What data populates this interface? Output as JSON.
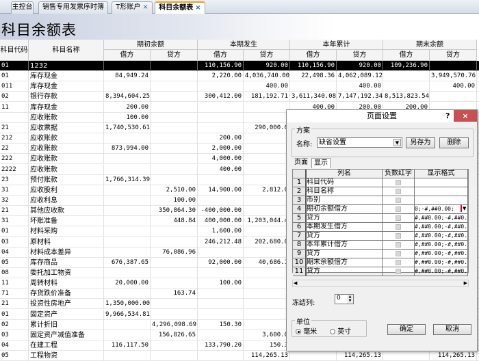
{
  "tabs": [
    {
      "label": "主控台",
      "closable": false
    },
    {
      "label": "销售专用发票序时簿",
      "closable": false
    },
    {
      "label": "T形账户",
      "closable": true
    },
    {
      "label": "科目余额表",
      "closable": true,
      "active": true
    }
  ],
  "page_title": "科目余额表",
  "header": {
    "code": "科目代码",
    "name": "科目名称",
    "groups": [
      "期初余额",
      "本期发生",
      "本年累计",
      "期末余额"
    ],
    "debit": "借方",
    "credit": "贷方"
  },
  "rows": [
    [
      "01",
      "1232",
      "",
      "",
      "110,156.90",
      "920.00",
      "110,156.90",
      "920.00",
      "109,236.90",
      ""
    ],
    [
      "01",
      "库存现金",
      "84,949.24",
      "",
      "2,220.00",
      "4,036,740.00",
      "22,498.36",
      "4,062,089.12",
      "",
      "3,949,570.76"
    ],
    [
      "011",
      "库存现金",
      "",
      "",
      "",
      "400.00",
      "",
      "400.00",
      "",
      "400.00"
    ],
    [
      "02",
      "银行存款",
      "8,394,604.25",
      "",
      "300,412.00",
      "181,192.71",
      "3,611,340.08",
      "7,147,192.34",
      "8,513,823.54",
      ""
    ],
    [
      "11",
      "库存现金",
      "200.00",
      "",
      "",
      "",
      "400.00",
      "200.00",
      "200.00",
      ""
    ],
    [
      "",
      "应收账款",
      "100.00",
      "",
      "",
      "",
      "",
      "",
      "",
      ""
    ],
    [
      "21",
      "应收票据",
      "1,740,530.61",
      "",
      "",
      "290,000.0",
      "",
      "",
      "",
      ""
    ],
    [
      "212",
      "应收账款",
      "",
      "",
      "200.00",
      "",
      "",
      "",
      "",
      ""
    ],
    [
      "22",
      "应收账款",
      "873,994.00",
      "",
      "2,000.00",
      "",
      "",
      "",
      "",
      ""
    ],
    [
      "222",
      "应收账款",
      "",
      "",
      "4,000.00",
      "",
      "",
      "",
      "",
      ""
    ],
    [
      "2222",
      "应收账款",
      "",
      "",
      "400.00",
      "",
      "",
      "",
      "",
      ""
    ],
    [
      "23",
      "预付账款",
      "1,766,314.39",
      "",
      "",
      "",
      "",
      "",
      "",
      ""
    ],
    [
      "31",
      "应收股利",
      "",
      "2,510.00",
      "14,900.00",
      "2,812.0",
      "",
      "",
      "",
      ""
    ],
    [
      "32",
      "应收利息",
      "",
      "100.00",
      "",
      "",
      "",
      "",
      "",
      ""
    ],
    [
      "21",
      "其他应收款",
      "",
      "350,864.30",
      "-400,000.00",
      "",
      "",
      "",
      "",
      ""
    ],
    [
      "31",
      "坏账准备",
      "",
      "448.84",
      "400,000.00",
      "1,203,044.4",
      "",
      "",
      "",
      ""
    ],
    [
      "01",
      "材料采购",
      "",
      "",
      "1,600.00",
      "",
      "",
      "",
      "",
      ""
    ],
    [
      "03",
      "原材料",
      "",
      "",
      "246,212.48",
      "202,680.0",
      "",
      "",
      "",
      ""
    ],
    [
      "04",
      "材料成本差异",
      "",
      "76,086.96",
      "",
      "",
      "",
      "",
      "",
      ""
    ],
    [
      "05",
      "库存商品",
      "676,387.65",
      "",
      "92,000.00",
      "40,686.1",
      "",
      "",
      "",
      ""
    ],
    [
      "08",
      "委托加工物资",
      "",
      "",
      "",
      "",
      "",
      "",
      "",
      ""
    ],
    [
      "11",
      "周转材料",
      "20,000.00",
      "",
      "100.00",
      "",
      "",
      "",
      "",
      ""
    ],
    [
      "71",
      "存货跌价准备",
      "",
      "163.74",
      "",
      "",
      "",
      "",
      "",
      ""
    ],
    [
      "21",
      "投资性房地产",
      "1,350,000.00",
      "",
      "",
      "",
      "",
      "",
      "",
      ""
    ],
    [
      "01",
      "固定资产",
      "9,966,534.81",
      "",
      "",
      "",
      "",
      "",
      "",
      ""
    ],
    [
      "02",
      "累计折旧",
      "",
      "4,296,098.69",
      "150.30",
      "",
      "",
      "",
      "",
      ""
    ],
    [
      "03",
      "固定资产减值准备",
      "",
      "156,826.65",
      "",
      "3,600.0",
      "",
      "",
      "",
      ""
    ],
    [
      "04",
      "在建工程",
      "116,117.50",
      "",
      "133,790.20",
      "150.3",
      "",
      "",
      "",
      ""
    ],
    [
      "05",
      "工程物资",
      "",
      "",
      "",
      "114,265.13",
      "",
      "114,265.13",
      "",
      "114,265.13"
    ]
  ],
  "dialog": {
    "title": "页面设置",
    "help": "?",
    "close": "×",
    "scheme_label": "方案",
    "name_label": "名称:",
    "name_value": "缺省设置",
    "save_as": "另存为",
    "delete": "删除",
    "tabs": [
      "页面",
      "显示"
    ],
    "active_tab": "显示",
    "grid_headers": [
      "列名",
      "负数红字",
      "显示格式"
    ],
    "grid_rows": [
      {
        "n": "1",
        "name": "科目代码",
        "fmt": ""
      },
      {
        "n": "2",
        "name": "科目名称",
        "fmt": ""
      },
      {
        "n": "3",
        "name": "币别",
        "fmt": ""
      },
      {
        "n": "4",
        "name": "期初余额借方",
        "fmt": "0;-#,##0.00;"
      },
      {
        "n": "5",
        "name": "贷方",
        "fmt": "#,##0.00;-#,##0.0"
      },
      {
        "n": "6",
        "name": "本期发生借方",
        "fmt": "#,##0.00;-#,##0.0"
      },
      {
        "n": "7",
        "name": "贷方",
        "fmt": "#,##0.00;-#,##0.0"
      },
      {
        "n": "8",
        "name": "本年累计借方",
        "fmt": "#,##0.00;-#,##0.0"
      },
      {
        "n": "9",
        "name": "贷方",
        "fmt": "#,##0.00;-#,##0.0"
      },
      {
        "n": "10",
        "name": "期末余额借方",
        "fmt": "#,##0.00;-#,##0.0"
      },
      {
        "n": "11",
        "name": "贷方",
        "fmt": "#,##0.00;-#,##0.0"
      }
    ],
    "freeze_label": "冻结列:",
    "freeze_value": "0",
    "unit_label": "单位",
    "unit_mm": "毫米",
    "unit_inch": "英寸",
    "unit_selected": "毫米",
    "ok": "确定",
    "cancel": "取消"
  },
  "colors": {
    "selected_row": "#000000",
    "close_button": "#c75050",
    "tab_accent": "#f0a020"
  }
}
